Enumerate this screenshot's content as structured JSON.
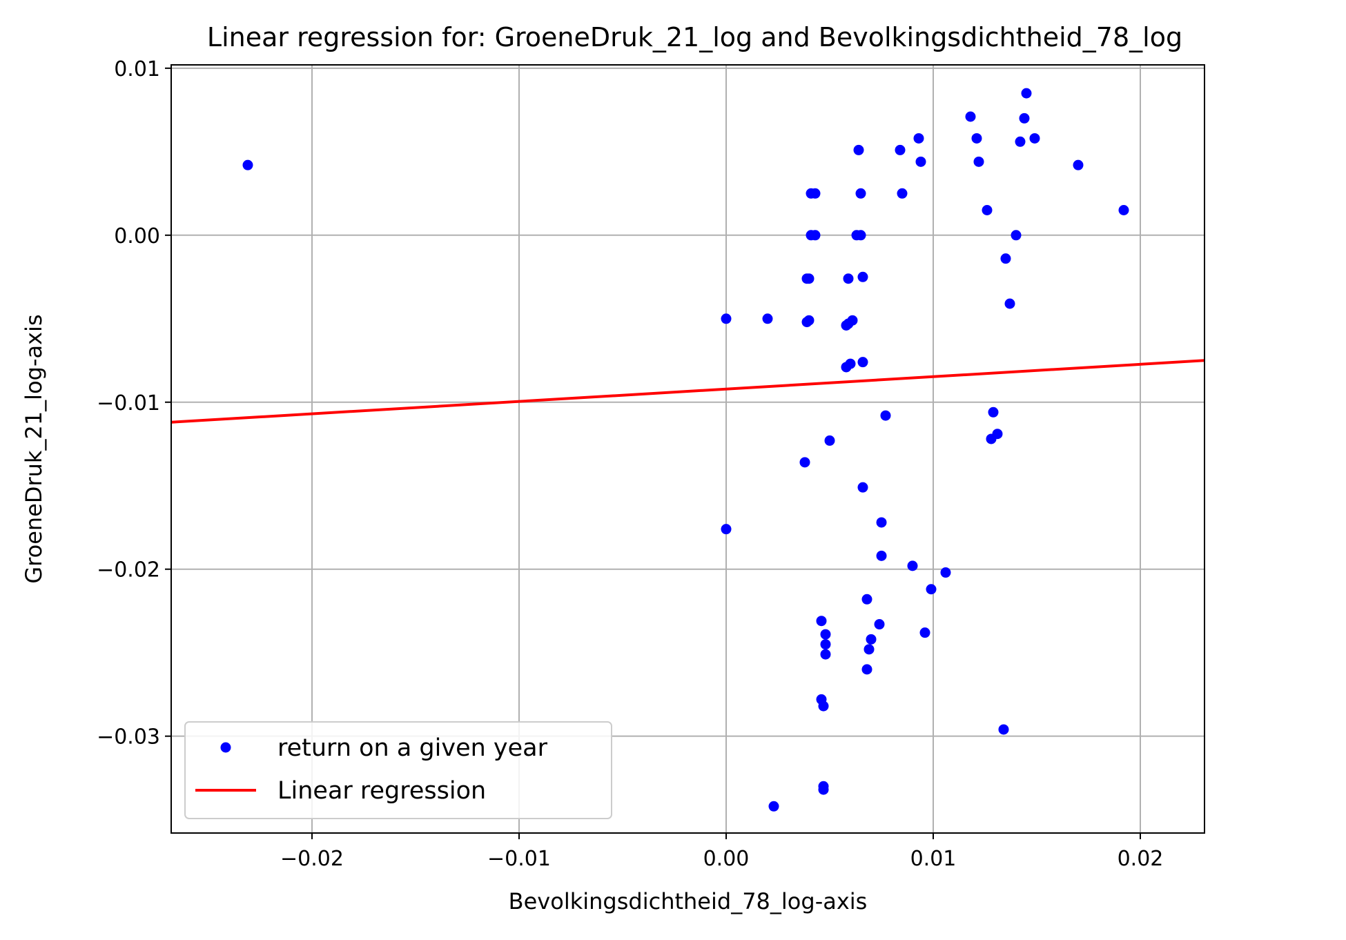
{
  "chart_data": {
    "type": "scatter",
    "title": "Linear regression for: GroeneDruk_21_log and Bevolkingsdichtheid_78_log",
    "xlabel": "Bevolkingsdichtheid_78_log-axis",
    "ylabel": "GroeneDruk_21_log-axis",
    "xlim": [
      -0.0268,
      0.0231
    ],
    "ylim": [
      -0.0358,
      0.0102
    ],
    "x_ticks": [
      -0.02,
      -0.01,
      0.0,
      0.01,
      0.02
    ],
    "x_tick_labels": [
      "−0.02",
      "−0.01",
      "0.00",
      "0.01",
      "0.02"
    ],
    "y_ticks": [
      0.01,
      0.0,
      -0.01,
      -0.02,
      -0.03
    ],
    "y_tick_labels": [
      "0.01",
      "0.00",
      "−0.01",
      "−0.02",
      "−0.03"
    ],
    "grid": true,
    "legend_position": "lower-left",
    "series": [
      {
        "name": "return on a given year",
        "kind": "scatter",
        "color": "#0000ff",
        "points": [
          [
            -0.0231,
            0.0042
          ],
          [
            0.0,
            -0.005
          ],
          [
            0.0,
            -0.0176
          ],
          [
            0.002,
            -0.005
          ],
          [
            0.0023,
            -0.0342
          ],
          [
            0.0038,
            -0.0136
          ],
          [
            0.0039,
            -0.0026
          ],
          [
            0.004,
            -0.0026
          ],
          [
            0.0039,
            -0.0052
          ],
          [
            0.004,
            -0.0051
          ],
          [
            0.0041,
            0.0025
          ],
          [
            0.0043,
            0.0025
          ],
          [
            0.0041,
            0.0
          ],
          [
            0.0043,
            0.0
          ],
          [
            0.0046,
            -0.0231
          ],
          [
            0.0046,
            -0.0278
          ],
          [
            0.0047,
            -0.0282
          ],
          [
            0.0048,
            -0.0239
          ],
          [
            0.0048,
            -0.0245
          ],
          [
            0.0048,
            -0.0251
          ],
          [
            0.0047,
            -0.033
          ],
          [
            0.0047,
            -0.0332
          ],
          [
            0.005,
            -0.0123
          ],
          [
            0.0058,
            -0.0054
          ],
          [
            0.0059,
            -0.0053
          ],
          [
            0.0061,
            -0.0051
          ],
          [
            0.0059,
            -0.0026
          ],
          [
            0.0058,
            -0.0079
          ],
          [
            0.006,
            -0.0077
          ],
          [
            0.0064,
            0.0051
          ],
          [
            0.0065,
            0.0025
          ],
          [
            0.0063,
            0.0
          ],
          [
            0.0065,
            0.0
          ],
          [
            0.0066,
            -0.0025
          ],
          [
            0.0066,
            -0.0076
          ],
          [
            0.0066,
            -0.0151
          ],
          [
            0.0068,
            -0.0218
          ],
          [
            0.007,
            -0.0242
          ],
          [
            0.0069,
            -0.0248
          ],
          [
            0.0068,
            -0.026
          ],
          [
            0.0074,
            -0.0233
          ],
          [
            0.0075,
            -0.0192
          ],
          [
            0.0075,
            -0.0172
          ],
          [
            0.0077,
            -0.0108
          ],
          [
            0.0084,
            0.0051
          ],
          [
            0.0085,
            0.0025
          ],
          [
            0.009,
            -0.0198
          ],
          [
            0.0093,
            0.0058
          ],
          [
            0.0094,
            0.0044
          ],
          [
            0.0096,
            -0.0238
          ],
          [
            0.0099,
            -0.0212
          ],
          [
            0.0106,
            -0.0202
          ],
          [
            0.0118,
            0.0071
          ],
          [
            0.0121,
            0.0058
          ],
          [
            0.0122,
            0.0044
          ],
          [
            0.0126,
            0.0015
          ],
          [
            0.0128,
            -0.0122
          ],
          [
            0.0129,
            -0.0106
          ],
          [
            0.0131,
            -0.0119
          ],
          [
            0.0134,
            -0.0296
          ],
          [
            0.0135,
            -0.0014
          ],
          [
            0.0137,
            -0.0041
          ],
          [
            0.014,
            0.0
          ],
          [
            0.0142,
            0.0056
          ],
          [
            0.0144,
            0.007
          ],
          [
            0.0145,
            0.0085
          ],
          [
            0.0149,
            0.0058
          ],
          [
            0.017,
            0.0042
          ],
          [
            0.0192,
            0.0015
          ]
        ]
      },
      {
        "name": "Linear regression",
        "kind": "line",
        "color": "#ff0000",
        "points": [
          [
            -0.0268,
            -0.0112
          ],
          [
            0.0231,
            -0.0075
          ]
        ]
      }
    ]
  }
}
